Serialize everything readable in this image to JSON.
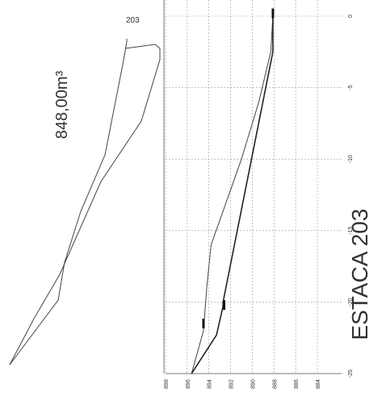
{
  "sheet": {
    "volume_label": "848,00m³",
    "station_label": "203",
    "title": "ESTACA 203"
  },
  "chart_data": {
    "type": "line",
    "x_ticks": [
      "0",
      "-5",
      "-10",
      "-15",
      "-20",
      "-25"
    ],
    "y_ticks": [
      "898",
      "896",
      "894",
      "892",
      "890",
      "888",
      "886",
      "884"
    ],
    "xlim": [
      -25,
      0
    ],
    "ylim": [
      884,
      898
    ],
    "grid": true,
    "series": [
      {
        "role": "terrain",
        "x": [
          0,
          -2.5,
          -6,
          -10,
          -13,
          -16,
          -19,
          -22,
          -25
        ],
        "y": [
          888.1,
          888.3,
          889.4,
          891.0,
          892.4,
          893.8,
          894.2,
          894.5,
          895.6
        ]
      },
      {
        "role": "platform",
        "x": [
          0,
          -2.5,
          -20,
          -20.3,
          -22.3,
          -25
        ],
        "y": [
          888.1,
          888.1,
          892.7,
          892.7,
          893.3,
          895.6
        ]
      }
    ]
  }
}
